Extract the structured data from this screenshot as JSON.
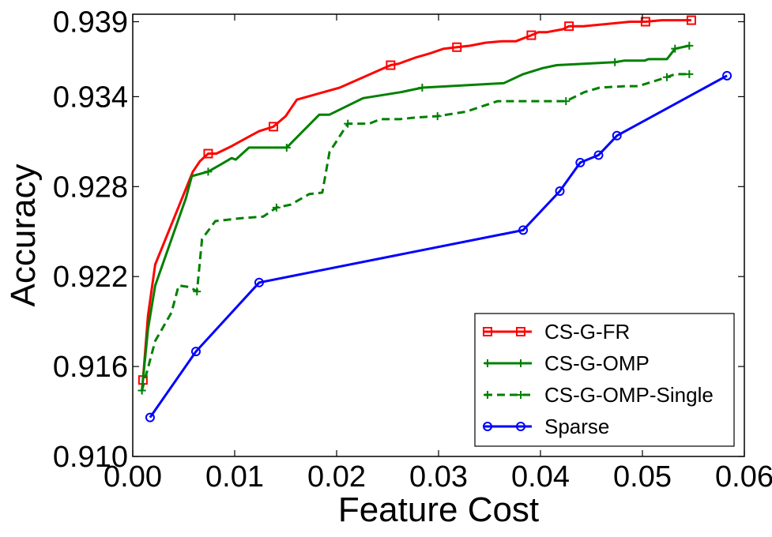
{
  "chart_data": {
    "type": "line",
    "title": "",
    "xlabel": "Feature Cost",
    "ylabel": "Accuracy",
    "xlim": [
      0.0,
      0.06
    ],
    "ylim": [
      0.91,
      0.9395
    ],
    "x_ticks": [
      0.0,
      0.01,
      0.02,
      0.03,
      0.04,
      0.05,
      0.06
    ],
    "x_tick_labels": [
      "0.00",
      "0.01",
      "0.02",
      "0.03",
      "0.04",
      "0.05",
      "0.06"
    ],
    "y_ticks": [
      0.91,
      0.916,
      0.922,
      0.928,
      0.934,
      0.939
    ],
    "y_tick_labels": [
      "0.910",
      "0.916",
      "0.922",
      "0.928",
      "0.934",
      "0.939"
    ],
    "grid": false,
    "legend_position": "bottom-right",
    "series": [
      {
        "name": "CS-G-FR",
        "color": "#ff0000",
        "linestyle": "solid",
        "marker": "square",
        "x": [
          0.001,
          0.0015,
          0.0022,
          0.0059,
          0.0066,
          0.0074,
          0.0082,
          0.0097,
          0.0113,
          0.0124,
          0.0138,
          0.015,
          0.0161,
          0.0182,
          0.0203,
          0.0253,
          0.0261,
          0.0277,
          0.0292,
          0.0305,
          0.0318,
          0.0331,
          0.0346,
          0.0362,
          0.0376,
          0.0391,
          0.0398,
          0.0406,
          0.0414,
          0.0422,
          0.0428,
          0.0442,
          0.0458,
          0.0473,
          0.0488,
          0.0503,
          0.0519,
          0.0532,
          0.054,
          0.0548
        ],
        "y": [
          0.9151,
          0.9194,
          0.9228,
          0.929,
          0.9297,
          0.9302,
          0.9302,
          0.9307,
          0.9313,
          0.9317,
          0.932,
          0.9327,
          0.9338,
          0.9342,
          0.9346,
          0.9361,
          0.9362,
          0.9366,
          0.9369,
          0.9372,
          0.9373,
          0.9374,
          0.9376,
          0.9377,
          0.9377,
          0.9381,
          0.9383,
          0.9383,
          0.9384,
          0.9385,
          0.9387,
          0.9387,
          0.9388,
          0.9389,
          0.939,
          0.939,
          0.9391,
          0.9391,
          0.9391,
          0.9391
        ]
      },
      {
        "name": "CS-G-OMP",
        "color": "#008000",
        "linestyle": "solid",
        "marker": "plus",
        "x": [
          0.0009,
          0.0015,
          0.0022,
          0.0052,
          0.0058,
          0.0074,
          0.0087,
          0.0097,
          0.0101,
          0.0114,
          0.0151,
          0.0183,
          0.0193,
          0.0226,
          0.0263,
          0.0284,
          0.0364,
          0.0383,
          0.0402,
          0.0416,
          0.0473,
          0.0482,
          0.0502,
          0.0506,
          0.0524,
          0.0532,
          0.0546
        ],
        "y": [
          0.9144,
          0.9185,
          0.9214,
          0.9272,
          0.9287,
          0.929,
          0.9295,
          0.9299,
          0.9298,
          0.9306,
          0.9306,
          0.9328,
          0.9328,
          0.9339,
          0.9343,
          0.9346,
          0.9349,
          0.9355,
          0.9359,
          0.9361,
          0.9363,
          0.9364,
          0.9364,
          0.9365,
          0.9365,
          0.9372,
          0.9374
        ]
      },
      {
        "name": "CS-G-OMP-Single",
        "color": "#008000",
        "linestyle": "dashed",
        "marker": "plus",
        "x": [
          0.0009,
          0.0022,
          0.0038,
          0.0045,
          0.0056,
          0.0063,
          0.0068,
          0.0081,
          0.0107,
          0.0128,
          0.0141,
          0.0155,
          0.0173,
          0.0186,
          0.0193,
          0.0211,
          0.0232,
          0.0243,
          0.0262,
          0.0276,
          0.0299,
          0.0327,
          0.0358,
          0.0383,
          0.0402,
          0.0425,
          0.0443,
          0.0458,
          0.0483,
          0.0496,
          0.0524,
          0.0532,
          0.0546
        ],
        "y": [
          0.9144,
          0.9177,
          0.9196,
          0.9214,
          0.9213,
          0.921,
          0.9245,
          0.9257,
          0.9259,
          0.926,
          0.9266,
          0.9268,
          0.9275,
          0.9276,
          0.9303,
          0.9322,
          0.9322,
          0.9325,
          0.9325,
          0.9326,
          0.9327,
          0.933,
          0.9337,
          0.9337,
          0.9337,
          0.9337,
          0.9343,
          0.9346,
          0.9347,
          0.9347,
          0.9353,
          0.9355,
          0.9355
        ]
      },
      {
        "name": "Sparse",
        "color": "#0000ff",
        "linestyle": "solid",
        "marker": "circle",
        "x": [
          0.0017,
          0.0062,
          0.0124,
          0.0383,
          0.0419,
          0.0439,
          0.0457,
          0.0475,
          0.0583
        ],
        "y": [
          0.9126,
          0.917,
          0.9216,
          0.9251,
          0.9277,
          0.9296,
          0.9301,
          0.9314,
          0.9354
        ]
      }
    ]
  }
}
